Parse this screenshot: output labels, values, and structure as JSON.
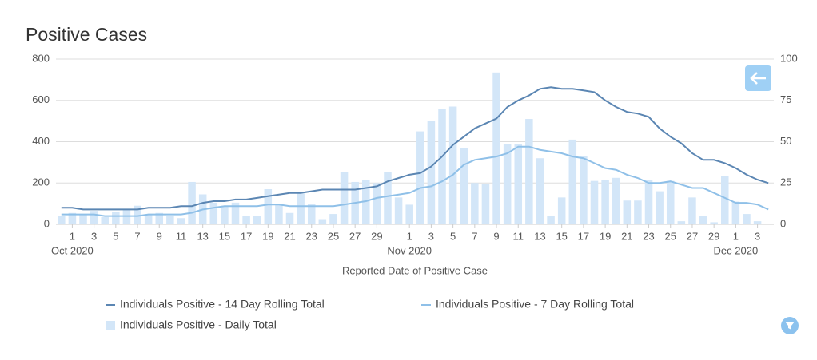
{
  "chart_data": {
    "type": "bar-line",
    "title": "Positive Cases",
    "x_title": "Reported Date of Positive Case",
    "categories": [
      null,
      "1",
      null,
      "3",
      null,
      "5",
      null,
      "7",
      null,
      "9",
      null,
      "11",
      null,
      "13",
      null,
      "15",
      null,
      "17",
      null,
      "19",
      null,
      "21",
      null,
      "23",
      null,
      "25",
      null,
      "27",
      null,
      "29",
      null,
      null,
      "1",
      null,
      "3",
      null,
      "5",
      null,
      "7",
      null,
      "9",
      null,
      "11",
      null,
      "13",
      null,
      "15",
      null,
      "17",
      null,
      "19",
      null,
      "21",
      null,
      "23",
      null,
      "25",
      null,
      "27",
      null,
      "29",
      null,
      "1",
      null,
      "3",
      null
    ],
    "month_labels": [
      "Oct 2020",
      "Nov 2020",
      "Dec 2020"
    ],
    "ylim": [
      0,
      800
    ],
    "yticks": [
      0,
      200,
      400,
      600,
      800
    ],
    "y2lim": [
      0,
      100
    ],
    "y2ticks": [
      0,
      25,
      50,
      75,
      100
    ],
    "grid": true,
    "series": [
      {
        "name": "Individuals Positive - 14 Day Rolling Total",
        "type": "line",
        "axis": "y2",
        "color": "#5b86b3",
        "values": [
          10,
          10,
          9,
          9,
          9,
          9,
          9,
          9,
          10,
          10,
          10,
          11,
          11,
          13,
          14,
          14,
          15,
          15,
          16,
          17,
          18,
          19,
          19,
          20,
          21,
          21,
          21,
          21,
          22,
          23,
          26,
          28,
          30,
          31,
          35,
          41,
          48,
          53,
          58,
          61,
          64,
          71,
          75,
          78,
          82,
          83,
          82,
          82,
          81,
          80,
          75,
          71,
          68,
          67,
          65,
          58,
          53,
          49,
          43,
          39,
          39,
          37,
          34,
          30,
          27,
          25
        ]
      },
      {
        "name": "Individuals Positive - 7 Day Rolling Total",
        "type": "line",
        "axis": "y2",
        "color": "#8fc0e8",
        "values": [
          6,
          6,
          6,
          6,
          5,
          5,
          5,
          5,
          6,
          6,
          6,
          6,
          7,
          9,
          10,
          11,
          11,
          11,
          11,
          12,
          12,
          11,
          11,
          11,
          11,
          11,
          12,
          13,
          14,
          16,
          17,
          18,
          19,
          22,
          23,
          26,
          30,
          36,
          39,
          40,
          41,
          43,
          47,
          47,
          45,
          44,
          43,
          41,
          40,
          37,
          34,
          33,
          30,
          28,
          25,
          25,
          26,
          24,
          22,
          22,
          19,
          16,
          13,
          13,
          12,
          9
        ]
      },
      {
        "name": "Individuals Positive - Daily Total",
        "type": "bar",
        "axis": "y",
        "color": "#d3e6f8",
        "values": [
          40,
          55,
          45,
          65,
          35,
          60,
          70,
          90,
          45,
          55,
          40,
          30,
          205,
          145,
          105,
          90,
          105,
          40,
          40,
          170,
          100,
          55,
          150,
          100,
          25,
          50,
          255,
          205,
          215,
          200,
          255,
          130,
          95,
          450,
          500,
          560,
          570,
          370,
          200,
          195,
          735,
          390,
          390,
          510,
          320,
          40,
          130,
          410,
          330,
          210,
          215,
          225,
          115,
          115,
          215,
          160,
          210,
          15,
          130,
          40,
          10,
          235,
          110,
          50,
          15,
          null
        ]
      }
    ]
  }
}
